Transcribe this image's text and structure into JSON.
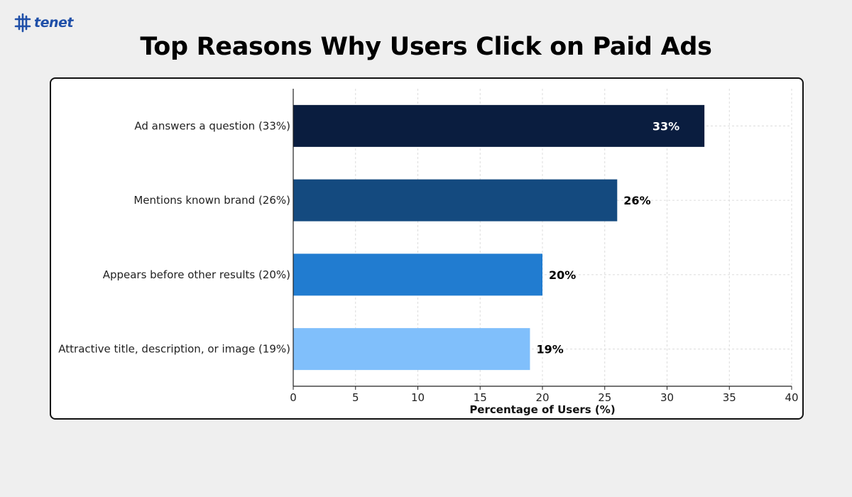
{
  "brand": {
    "name": "tenet",
    "icon": "tenet-logo-icon",
    "color": "#1f4fa8"
  },
  "page_title": "Top Reasons Why Users Click on Paid Ads",
  "chart_data": {
    "type": "bar",
    "orientation": "horizontal",
    "categories": [
      "Ad answers a question (33%)",
      "Mentions known brand (26%)",
      "Appears before other results (20%)",
      "Attractive title, description, or image (19%)"
    ],
    "values": [
      33,
      26,
      20,
      19
    ],
    "value_labels": [
      "33%",
      "26%",
      "20%",
      "19%"
    ],
    "colors": [
      "#0a1d3f",
      "#144a7f",
      "#217cd0",
      "#80bffb"
    ],
    "value_label_colors": [
      "#ffffff",
      "#000000",
      "#000000",
      "#000000"
    ],
    "xlabel": "Percentage of Users (%)",
    "ylabel": "",
    "xlim": [
      0,
      40
    ],
    "xticks": [
      0,
      5,
      10,
      15,
      20,
      25,
      30,
      35,
      40
    ],
    "grid": true
  }
}
